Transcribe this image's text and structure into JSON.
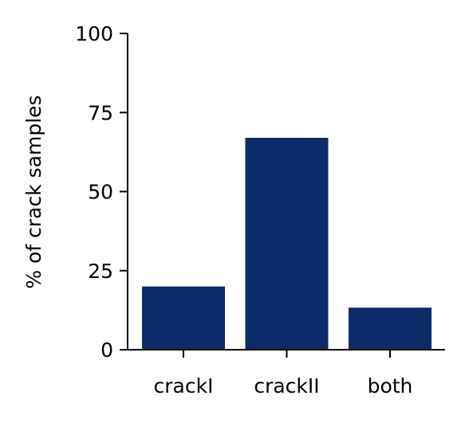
{
  "chart_data": {
    "type": "bar",
    "title": "",
    "xlabel": "",
    "ylabel": "% of crack samples",
    "categories": [
      "crackI",
      "crackII",
      "both"
    ],
    "values": [
      20,
      67,
      13.3
    ],
    "ylim": [
      0,
      100
    ],
    "yticks": [
      0,
      25,
      50,
      75,
      100
    ],
    "grid": false,
    "legend": "none",
    "bar_color": "#0a2d69",
    "axis_color": "#000000"
  }
}
